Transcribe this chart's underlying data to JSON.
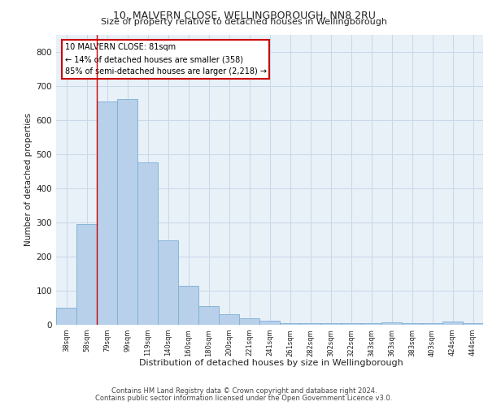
{
  "title_line1": "10, MALVERN CLOSE, WELLINGBOROUGH, NN8 2RU",
  "title_line2": "Size of property relative to detached houses in Wellingborough",
  "xlabel": "Distribution of detached houses by size in Wellingborough",
  "ylabel": "Number of detached properties",
  "footer_line1": "Contains HM Land Registry data © Crown copyright and database right 2024.",
  "footer_line2": "Contains public sector information licensed under the Open Government Licence v3.0.",
  "bar_color": "#b8d0ea",
  "bar_edge_color": "#7aafd4",
  "annotation_box_color": "#cc0000",
  "vline_color": "#cc0000",
  "annotation_title": "10 MALVERN CLOSE: 81sqm",
  "annotation_line1": "← 14% of detached houses are smaller (358)",
  "annotation_line2": "85% of semi-detached houses are larger (2,218) →",
  "grid_color": "#c8d8e8",
  "bg_color": "#e8f0f8",
  "categories": [
    "38sqm",
    "58sqm",
    "79sqm",
    "99sqm",
    "119sqm",
    "140sqm",
    "160sqm",
    "180sqm",
    "200sqm",
    "221sqm",
    "241sqm",
    "261sqm",
    "282sqm",
    "302sqm",
    "322sqm",
    "343sqm",
    "363sqm",
    "383sqm",
    "403sqm",
    "424sqm",
    "444sqm"
  ],
  "values": [
    50,
    295,
    655,
    660,
    475,
    248,
    115,
    55,
    30,
    18,
    12,
    5,
    5,
    5,
    5,
    5,
    8,
    5,
    5,
    10,
    5
  ],
  "vline_x_idx": 1.5,
  "ylim": [
    0,
    850
  ],
  "yticks": [
    0,
    100,
    200,
    300,
    400,
    500,
    600,
    700,
    800
  ]
}
